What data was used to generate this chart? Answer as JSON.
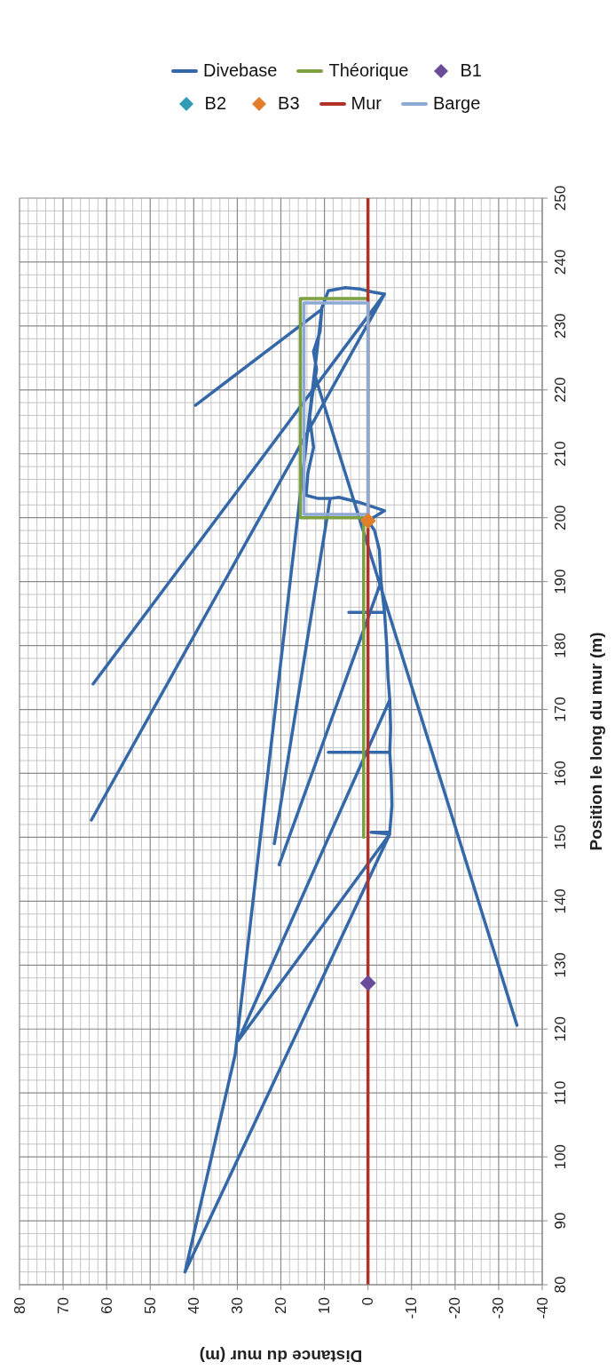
{
  "chart_data": {
    "type": "line",
    "xlabel": "Distance du mur (m)",
    "ylabel": "Position le long du mur (m)",
    "xlim": [
      80,
      -40
    ],
    "xticks": [
      80,
      70,
      60,
      50,
      40,
      30,
      20,
      10,
      0,
      -10,
      -20,
      -30,
      -40
    ],
    "ylim": [
      80,
      250
    ],
    "yticks": [
      80,
      90,
      100,
      110,
      120,
      130,
      140,
      150,
      160,
      170,
      180,
      190,
      200,
      210,
      220,
      230,
      240,
      250
    ],
    "grid": true,
    "legend": "top",
    "line_style": "solid",
    "marker": "none",
    "series": [
      {
        "name": "Divebase",
        "color": "#3468a8",
        "values": [
          152.7,
          235,
          null,
          217.6,
          232.6,
          116,
          82,
          150.5,
          150.8,
          150.8,
          155,
          160,
          163.3,
          163.3,
          163.3,
          167,
          171.5,
          175,
          180,
          185.2,
          185.2,
          185.2,
          190,
          195,
          198,
          199.5,
          201.1,
          202.4,
          203.2,
          203,
          203,
          203.5,
          207,
          211,
          215.7,
          219,
          223.2,
          226,
          229.1,
          232.8,
          235.5,
          236,
          235.8,
          235.3,
          235,
          174,
          null,
          120.6,
          222.5,
          null,
          149,
          203,
          null,
          145.7,
          190,
          null,
          171.5,
          118.2,
          150.5
        ],
        "x": [
          63.5,
          -3.8,
          null,
          39.6,
          10.6,
          30.5,
          42,
          -5,
          -0.7,
          -5,
          -5.5,
          -5.3,
          -5,
          9.1,
          -5,
          -5.2,
          -5,
          -4.6,
          -4.3,
          -3.8,
          4.4,
          -3.8,
          -3,
          -2.6,
          -1.5,
          0,
          -3.8,
          2,
          6.7,
          8.7,
          11.4,
          14.2,
          13.8,
          12.5,
          13.4,
          12.8,
          11.8,
          12.5,
          11,
          10.6,
          9.1,
          5.2,
          2,
          -1.1,
          -3.8,
          63.1,
          null,
          -34.2,
          12.3,
          null,
          21.5,
          8.7,
          null,
          20.4,
          -3,
          null,
          -5,
          29.8,
          -5
        ]
      },
      {
        "name": "Théorique",
        "color": "#7da040",
        "x": [
          1,
          1,
          15.5,
          15.5,
          0
        ],
        "values": [
          150,
          200,
          200,
          234.3,
          234.3
        ]
      },
      {
        "name": "B1",
        "type": "scatter",
        "marker": "diamond",
        "color": "#6b4c9a",
        "x": [
          0
        ],
        "values": [
          127.2
        ]
      },
      {
        "name": "B2",
        "type": "scatter",
        "marker": "diamond",
        "color": "#2f9bb5",
        "x": [
          null
        ],
        "values": [
          null
        ]
      },
      {
        "name": "B3",
        "type": "scatter",
        "marker": "diamond",
        "color": "#e27d2a",
        "x": [
          0
        ],
        "values": [
          199.5
        ]
      },
      {
        "name": "Mur",
        "color": "#b03228",
        "x": [
          0,
          0
        ],
        "values": [
          80,
          250
        ]
      },
      {
        "name": "Barge",
        "color": "#8ea9d4",
        "x": [
          14.7,
          0,
          0,
          14.7,
          null,
          14.7,
          14.7
        ],
        "values": [
          233.6,
          233.6,
          200.5,
          200.5,
          null,
          233.6,
          200.5
        ]
      }
    ]
  }
}
